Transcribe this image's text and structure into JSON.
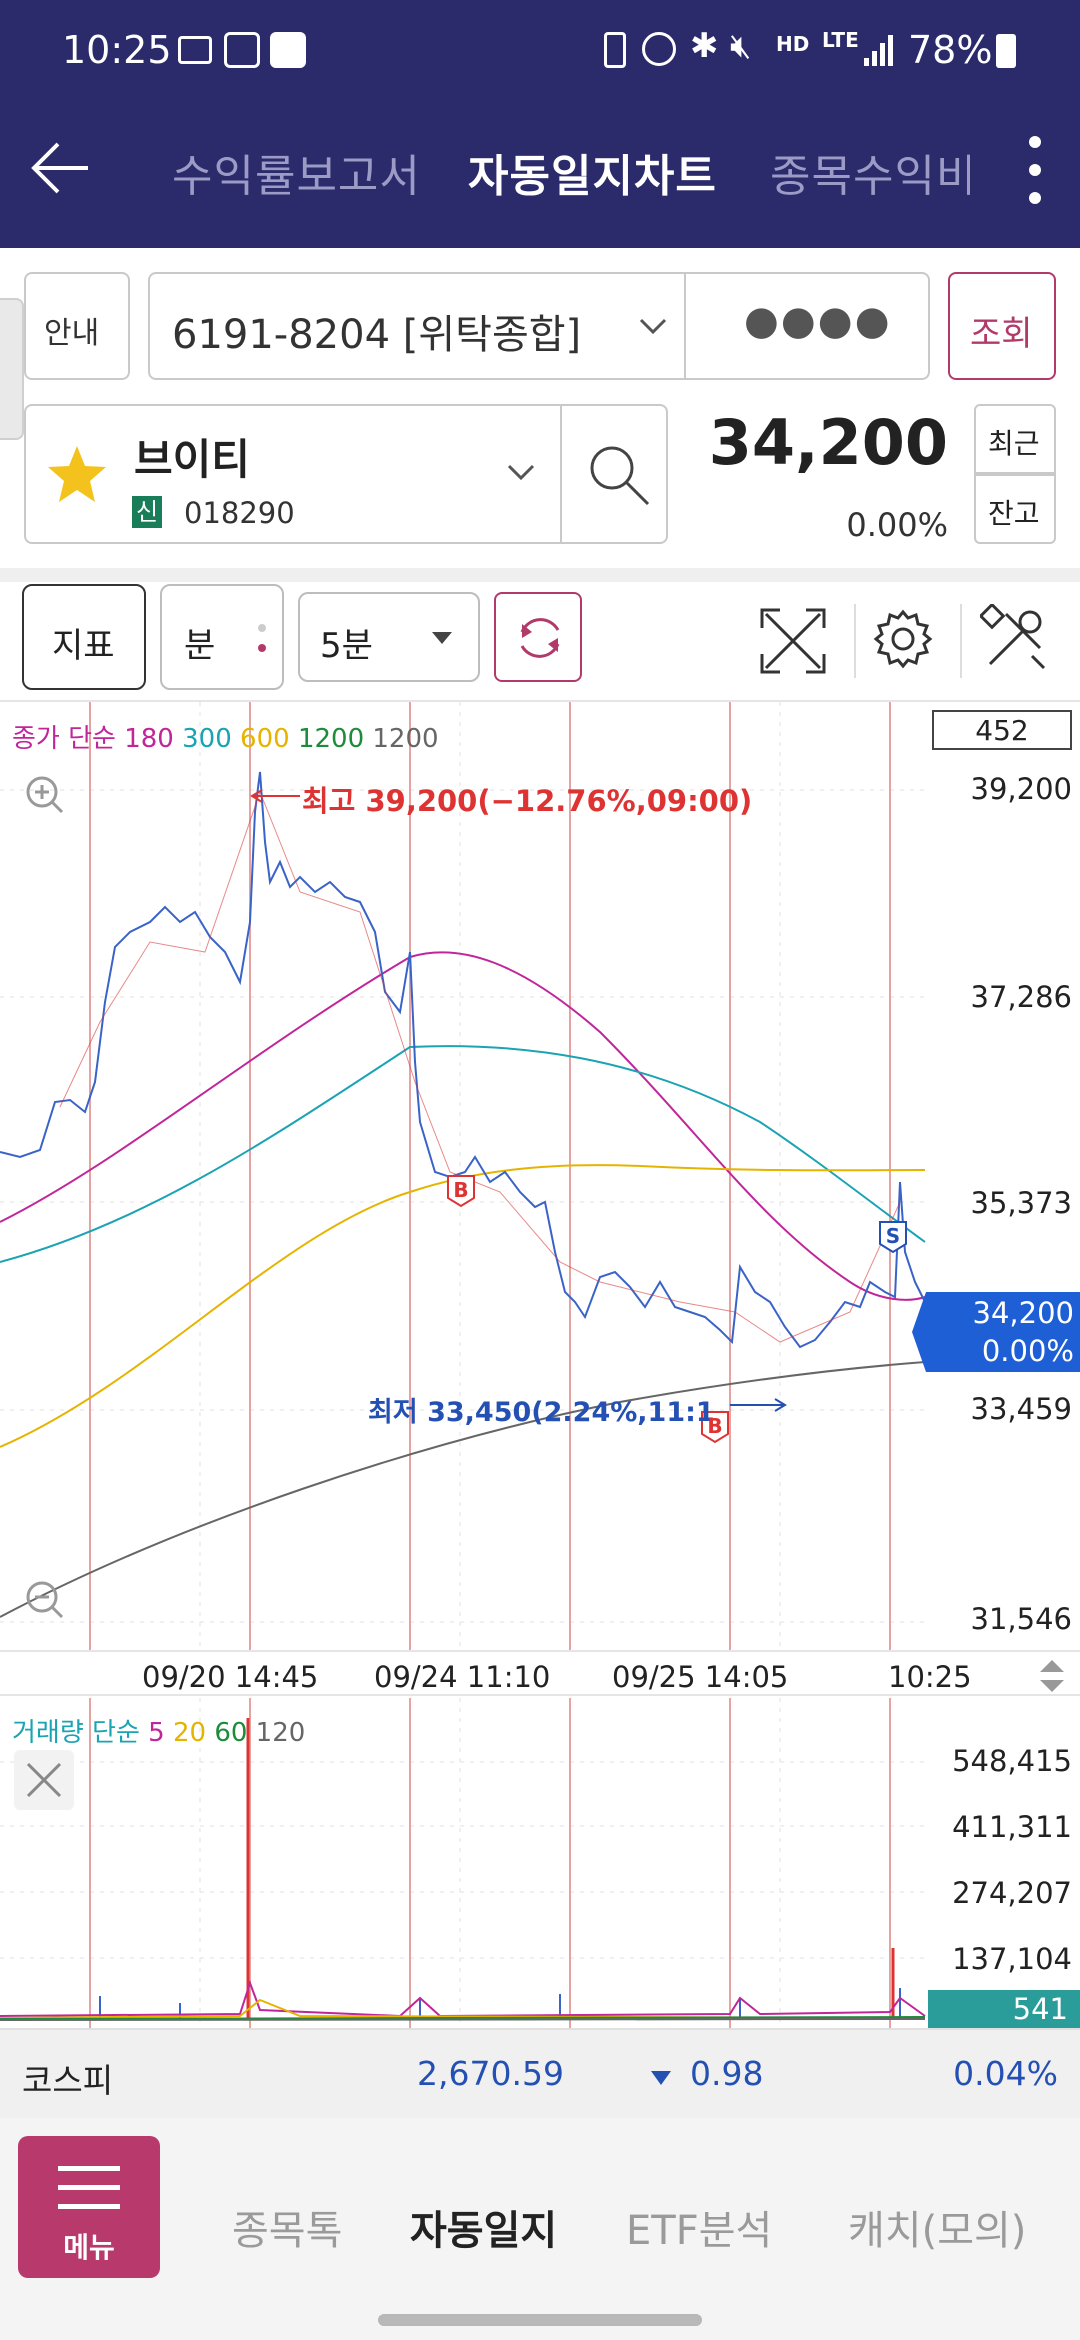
{
  "status": {
    "time": "10:25",
    "battery": "78%",
    "net_hd": "HD",
    "net_lte": "LTE"
  },
  "header": {
    "tabs": [
      "수익률보고서",
      "자동일지차트",
      "종목수익비"
    ],
    "active_tab": "자동일지차트"
  },
  "account": {
    "guide_label": "안내",
    "account_number": "6191-8204 [위탁종합]",
    "password_mask": "●●●●",
    "query_label": "조회"
  },
  "stock": {
    "name": "브이티",
    "badge": "신",
    "code": "018290",
    "price": "34,200",
    "change": "0.00%",
    "recent_label": "최근",
    "balance_label": "잔고"
  },
  "toolbar": {
    "indicator_label": "지표",
    "minute_label": "분",
    "interval": "5분"
  },
  "chart": {
    "ma_legend": {
      "prefix": "종가 단순",
      "periods": [
        "180",
        "300",
        "600",
        "1200",
        "1200"
      ],
      "colors": [
        "#c0269a",
        "#1aa3b3",
        "#e5b400",
        "#1d8c3a",
        "#666666"
      ]
    },
    "count_box": "452",
    "y_ticks": [
      "39,200",
      "37,286",
      "35,373",
      "33,459",
      "31,546"
    ],
    "high_annotation": "최고 39,200(−12.76%,09:00)",
    "low_annotation": "최저 33,450(2.24%,11:1",
    "current_price": "34,200",
    "current_change": "0.00%",
    "x_labels": [
      "09/20 14:45",
      "09/24 11:10",
      "09/25 14:05",
      "10:25"
    ],
    "markers": {
      "buy": "B",
      "sell": "S"
    }
  },
  "volume": {
    "legend_prefix": "거래량 단순",
    "periods": [
      "5",
      "20",
      "60",
      "120"
    ],
    "colors": [
      "#c0269a",
      "#e5b400",
      "#1d8c3a",
      "#666666"
    ],
    "y_ticks": [
      "548,415",
      "411,311",
      "274,207",
      "137,104"
    ],
    "current": "541"
  },
  "market": {
    "index_name": "코스피",
    "value": "2,670.59",
    "change": "0.98",
    "change_pct": "0.04%"
  },
  "bottom_nav": {
    "menu_label": "메뉴",
    "items": [
      "종목톡",
      "자동일지",
      "ETF분석",
      "캐치(모의)"
    ],
    "active": "자동일지"
  }
}
